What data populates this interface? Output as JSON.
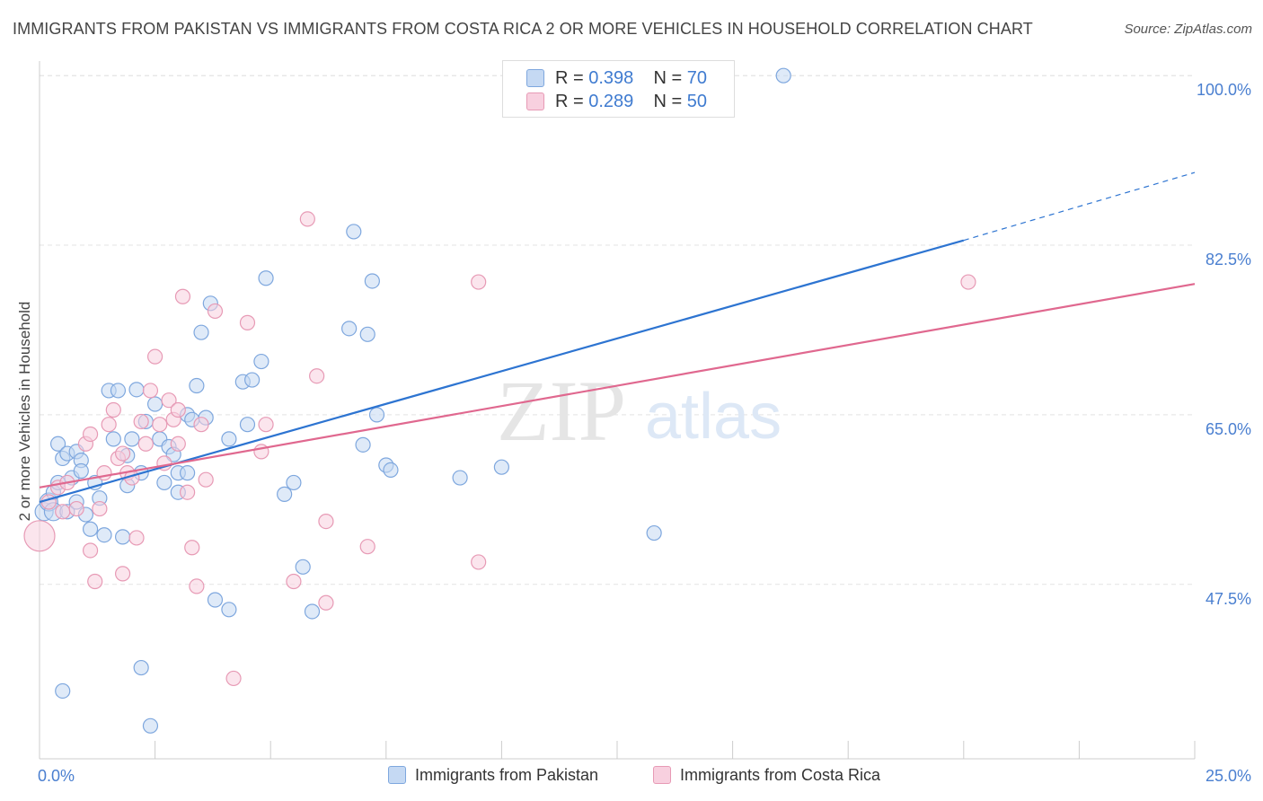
{
  "header": {
    "title": "IMMIGRANTS FROM PAKISTAN VS IMMIGRANTS FROM COSTA RICA 2 OR MORE VEHICLES IN HOUSEHOLD CORRELATION CHART",
    "source": "Source: ZipAtlas.com"
  },
  "watermark": {
    "zip": "ZIP",
    "atlas": "atlas"
  },
  "legend": {
    "pakistan": {
      "r_label": "R =",
      "r_value": "0.398",
      "n_label": "N =",
      "n_value": "70"
    },
    "costa_rica": {
      "r_label": "R =",
      "r_value": "0.289",
      "n_label": "N =",
      "n_value": "50"
    }
  },
  "colors": {
    "pakistan_fill": "#c5d9f3",
    "pakistan_stroke": "#7ea7de",
    "pakistan_line": "#2d74d1",
    "costa_rica_fill": "#f8d0df",
    "costa_rica_stroke": "#e79ab5",
    "costa_rica_line": "#e0688f",
    "tick_text": "#4a7fd0",
    "grid": "#e3e3e3"
  },
  "chart_data": {
    "type": "scatter",
    "title": "IMMIGRANTS FROM PAKISTAN VS IMMIGRANTS FROM COSTA RICA 2 OR MORE VEHICLES IN HOUSEHOLD CORRELATION CHART",
    "xlabel": "",
    "ylabel": "2 or more Vehicles in Household",
    "xlim": [
      0,
      25
    ],
    "ylim": [
      29.5,
      101.5
    ],
    "x_tick_labels": [
      "0.0%",
      "25.0%"
    ],
    "y_ticks": [
      47.5,
      65.0,
      82.5,
      100.0
    ],
    "y_tick_labels": [
      "47.5%",
      "65.0%",
      "82.5%",
      "100.0%"
    ],
    "grid": true,
    "legend_position": "top-center",
    "series": [
      {
        "name": "Immigrants from Pakistan",
        "r": 0.398,
        "n": 70,
        "trend": {
          "x": [
            0,
            20
          ],
          "y": [
            56.0,
            83.0
          ],
          "dashed_to": [
            25,
            90.0
          ]
        },
        "points": [
          [
            0.1,
            55.0
          ],
          [
            0.2,
            56.0
          ],
          [
            0.3,
            55.0
          ],
          [
            0.3,
            57.0
          ],
          [
            0.4,
            58.0
          ],
          [
            0.4,
            62.0
          ],
          [
            0.5,
            36.5
          ],
          [
            0.5,
            60.5
          ],
          [
            0.6,
            61.0
          ],
          [
            0.6,
            55.0
          ],
          [
            0.7,
            58.5
          ],
          [
            0.8,
            61.2
          ],
          [
            0.8,
            56.0
          ],
          [
            0.9,
            60.3
          ],
          [
            0.9,
            59.2
          ],
          [
            1.0,
            54.7
          ],
          [
            1.1,
            53.2
          ],
          [
            1.2,
            58.0
          ],
          [
            1.3,
            56.4
          ],
          [
            1.4,
            52.6
          ],
          [
            1.5,
            67.5
          ],
          [
            1.6,
            62.5
          ],
          [
            1.7,
            67.5
          ],
          [
            1.8,
            52.4
          ],
          [
            1.9,
            60.8
          ],
          [
            1.9,
            57.7
          ],
          [
            2.0,
            62.5
          ],
          [
            2.1,
            67.6
          ],
          [
            2.2,
            38.9
          ],
          [
            2.2,
            59.0
          ],
          [
            2.3,
            64.3
          ],
          [
            2.4,
            32.9
          ],
          [
            2.5,
            66.1
          ],
          [
            2.6,
            62.5
          ],
          [
            2.7,
            58.0
          ],
          [
            2.8,
            61.7
          ],
          [
            2.9,
            60.9
          ],
          [
            3.0,
            59.0
          ],
          [
            3.0,
            57.0
          ],
          [
            3.2,
            65.0
          ],
          [
            3.2,
            59.0
          ],
          [
            3.3,
            64.5
          ],
          [
            3.4,
            68.0
          ],
          [
            3.5,
            73.5
          ],
          [
            3.6,
            64.7
          ],
          [
            3.7,
            76.5
          ],
          [
            3.8,
            45.9
          ],
          [
            4.1,
            44.9
          ],
          [
            4.1,
            62.5
          ],
          [
            4.4,
            68.4
          ],
          [
            4.5,
            64.0
          ],
          [
            4.6,
            68.6
          ],
          [
            4.8,
            70.5
          ],
          [
            4.9,
            79.1
          ],
          [
            5.3,
            56.8
          ],
          [
            5.5,
            58.0
          ],
          [
            5.7,
            49.3
          ],
          [
            5.9,
            44.7
          ],
          [
            6.7,
            73.9
          ],
          [
            6.8,
            83.9
          ],
          [
            7.0,
            61.9
          ],
          [
            7.1,
            73.3
          ],
          [
            7.2,
            78.8
          ],
          [
            7.3,
            65.0
          ],
          [
            7.5,
            59.8
          ],
          [
            7.6,
            59.3
          ],
          [
            9.1,
            58.5
          ],
          [
            10.0,
            59.6
          ],
          [
            13.3,
            52.8
          ],
          [
            16.1,
            100.0
          ]
        ]
      },
      {
        "name": "Immigrants from Costa Rica",
        "r": 0.289,
        "n": 50,
        "trend": {
          "x": [
            0,
            25
          ],
          "y": [
            57.5,
            78.5
          ]
        },
        "points": [
          [
            0.0,
            52.5
          ],
          [
            0.2,
            56.0
          ],
          [
            0.4,
            57.5
          ],
          [
            0.5,
            55.0
          ],
          [
            0.6,
            58.0
          ],
          [
            0.8,
            55.3
          ],
          [
            1.0,
            62.0
          ],
          [
            1.1,
            51.0
          ],
          [
            1.1,
            63.0
          ],
          [
            1.2,
            47.8
          ],
          [
            1.3,
            55.3
          ],
          [
            1.4,
            59.0
          ],
          [
            1.5,
            64.0
          ],
          [
            1.6,
            65.5
          ],
          [
            1.7,
            60.5
          ],
          [
            1.8,
            48.6
          ],
          [
            1.8,
            61.0
          ],
          [
            1.9,
            59.0
          ],
          [
            2.0,
            58.5
          ],
          [
            2.1,
            52.3
          ],
          [
            2.2,
            64.3
          ],
          [
            2.3,
            62.0
          ],
          [
            2.4,
            67.5
          ],
          [
            2.5,
            71.0
          ],
          [
            2.6,
            64.0
          ],
          [
            2.7,
            60.0
          ],
          [
            2.8,
            66.5
          ],
          [
            2.9,
            64.5
          ],
          [
            3.0,
            65.5
          ],
          [
            3.0,
            62.0
          ],
          [
            3.1,
            77.2
          ],
          [
            3.2,
            57.0
          ],
          [
            3.3,
            51.3
          ],
          [
            3.4,
            47.3
          ],
          [
            3.5,
            64.0
          ],
          [
            3.6,
            58.3
          ],
          [
            3.8,
            75.7
          ],
          [
            4.2,
            37.8
          ],
          [
            4.5,
            74.5
          ],
          [
            4.8,
            61.2
          ],
          [
            4.9,
            64.0
          ],
          [
            5.5,
            47.8
          ],
          [
            5.8,
            85.2
          ],
          [
            6.0,
            69.0
          ],
          [
            6.2,
            54.0
          ],
          [
            6.2,
            45.6
          ],
          [
            7.1,
            51.4
          ],
          [
            9.5,
            78.7
          ],
          [
            9.5,
            49.8
          ],
          [
            20.1,
            78.7
          ]
        ]
      }
    ],
    "x_tick_marks": [
      2.5,
      5,
      7.5,
      10,
      12.5,
      15,
      17.5,
      20,
      22.5,
      25
    ]
  }
}
